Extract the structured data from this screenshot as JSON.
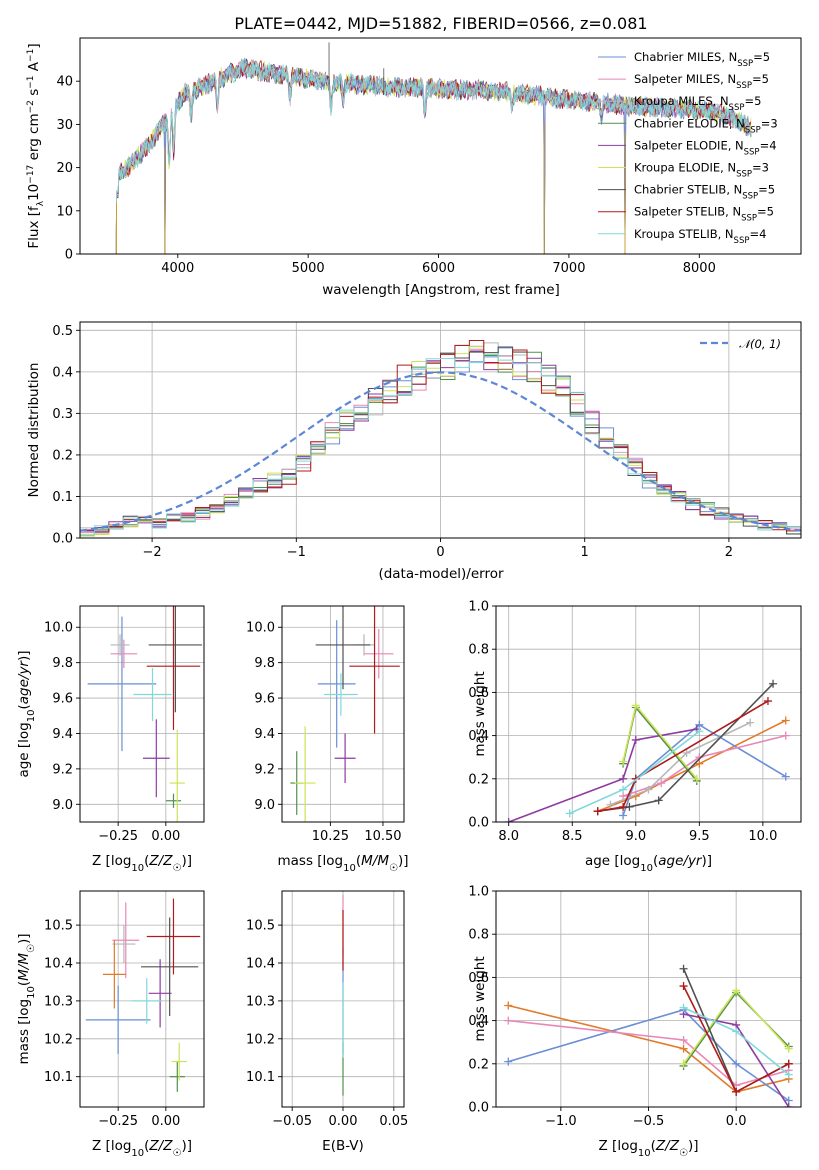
{
  "figure": {
    "title": "PLATE=0442, MJD=51882, FIBERID=0566, z=0.081"
  },
  "models": [
    {
      "name": "Chabrier MILES",
      "nssp": "5",
      "color": "#6a8fd6"
    },
    {
      "name": "Salpeter MILES",
      "nssp": "5",
      "color": "#e887b6"
    },
    {
      "name": "Kroupa MILES",
      "nssp": "5",
      "color": "#b7b7b7"
    },
    {
      "name": "Chabrier ELODIE",
      "nssp": "3",
      "color": "#52904e"
    },
    {
      "name": "Salpeter ELODIE",
      "nssp": "4",
      "color": "#8e3ba1"
    },
    {
      "name": "Kroupa ELODIE",
      "nssp": "3",
      "color": "#cde35a"
    },
    {
      "name": "Chabrier STELIB",
      "nssp": "5",
      "color": "#505050"
    },
    {
      "name": "Salpeter STELIB",
      "nssp": "5",
      "color": "#b11a1a"
    },
    {
      "name": "Kroupa STELIB",
      "nssp": "4",
      "color": "#7fd8dc"
    }
  ],
  "chart_data": [
    {
      "id": "spectrum",
      "type": "line",
      "xlabel": "wavelength [Angstrom, rest frame]",
      "ylabel": "Flux [f_λ 10^−17 erg cm^−2 s^−1 A^−1]",
      "xlim": [
        3250,
        8780
      ],
      "ylim": [
        0,
        50
      ],
      "xticks": [
        4000,
        5000,
        6000,
        7000,
        8000
      ],
      "yticks": [
        0,
        10,
        20,
        30,
        40
      ],
      "legend_position": "top-right",
      "continuum": {
        "x": [
          3530,
          3650,
          3800,
          3950,
          4050,
          4200,
          4350,
          4500,
          4700,
          4900,
          5100,
          5300,
          5500,
          5700,
          5900,
          6100,
          6300,
          6500,
          6700,
          6900,
          7100,
          7300,
          7500,
          7700,
          7900,
          8100,
          8300,
          8400
        ],
        "y": [
          18,
          21,
          26,
          33,
          37,
          39,
          41,
          43,
          42,
          41,
          40,
          39.5,
          39,
          38.5,
          38.5,
          38,
          38,
          37.5,
          37,
          36,
          35.5,
          35,
          34,
          34,
          33.5,
          33,
          31,
          29
        ]
      },
      "absorption_features": [
        {
          "x": 3934,
          "depth": 12
        },
        {
          "x": 3969,
          "depth": 10
        },
        {
          "x": 4102,
          "depth": 6
        },
        {
          "x": 4305,
          "depth": 7
        },
        {
          "x": 4861,
          "depth": 5
        },
        {
          "x": 5175,
          "depth": 6
        },
        {
          "x": 5270,
          "depth": 4
        },
        {
          "x": 5895,
          "depth": 6
        },
        {
          "x": 6563,
          "depth": 3
        },
        {
          "x": 7250,
          "depth": 3
        }
      ],
      "dropouts": [
        3530,
        3900,
        6810,
        7430
      ],
      "spikes": [
        {
          "x": 5160,
          "y": 49
        },
        {
          "x": 5580,
          "y": 43
        }
      ]
    },
    {
      "id": "residuals",
      "type": "histogram",
      "xlabel": "(data-model)/error",
      "ylabel": "Normed distribution",
      "xlim": [
        -2.5,
        2.5
      ],
      "ylim": [
        0,
        0.52
      ],
      "xticks": [
        -2,
        -1,
        0,
        1,
        2
      ],
      "yticks": [
        0,
        0.1,
        0.2,
        0.3,
        0.4,
        0.5
      ],
      "bin_edges_start": -2.5,
      "bin_width": 0.1,
      "base_distribution": [
        0.015,
        0.02,
        0.03,
        0.04,
        0.04,
        0.035,
        0.045,
        0.05,
        0.06,
        0.07,
        0.09,
        0.11,
        0.13,
        0.14,
        0.15,
        0.18,
        0.21,
        0.25,
        0.28,
        0.3,
        0.33,
        0.36,
        0.38,
        0.39,
        0.4,
        0.42,
        0.44,
        0.45,
        0.43,
        0.44,
        0.42,
        0.41,
        0.38,
        0.36,
        0.32,
        0.28,
        0.24,
        0.2,
        0.17,
        0.14,
        0.12,
        0.1,
        0.08,
        0.07,
        0.06,
        0.05,
        0.04,
        0.03,
        0.025,
        0.02
      ],
      "normal_curve": {
        "label": "𝒩(0, 1)",
        "mean": 0,
        "sigma": 1,
        "color": "#5b87d6"
      },
      "legend_position": "top-right"
    },
    {
      "id": "age-vs-Z",
      "type": "errorbar",
      "xlabel": "Z [log10(Z/Z☉)]",
      "ylabel": "age [log10(age/yr)]",
      "xlim": [
        -0.45,
        0.2
      ],
      "ylim": [
        8.9,
        10.12
      ],
      "xticks": [
        -0.25,
        0.0
      ],
      "xtick_labels": [
        "−0.25",
        "0.00"
      ],
      "yticks": [
        9.0,
        9.2,
        9.4,
        9.6,
        9.8,
        10.0
      ],
      "points": [
        {
          "model": 0,
          "x": -0.23,
          "xerr": 0.18,
          "y": 9.68,
          "yerr": 0.38
        },
        {
          "model": 1,
          "x": -0.22,
          "xerr": 0.07,
          "y": 9.85,
          "yerr": 0.08
        },
        {
          "model": 2,
          "x": -0.24,
          "xerr": 0.05,
          "y": 9.9,
          "yerr": 0.06
        },
        {
          "model": 3,
          "x": 0.04,
          "xerr": 0.04,
          "y": 9.02,
          "yerr": 0.04
        },
        {
          "model": 4,
          "x": -0.05,
          "xerr": 0.07,
          "y": 9.26,
          "yerr": 0.22
        },
        {
          "model": 5,
          "x": 0.06,
          "xerr": 0.04,
          "y": 9.12,
          "yerr": 0.3
        },
        {
          "model": 6,
          "x": 0.05,
          "xerr": 0.14,
          "y": 9.9,
          "yerr": 0.38
        },
        {
          "model": 7,
          "x": 0.04,
          "xerr": 0.14,
          "y": 9.78,
          "yerr": 0.36
        },
        {
          "model": 8,
          "x": -0.07,
          "xerr": 0.1,
          "y": 9.62,
          "yerr": 0.15
        }
      ]
    },
    {
      "id": "age-vs-mass",
      "type": "errorbar",
      "xlabel": "mass [log10(M/M☉)]",
      "ylabel": "",
      "xlim": [
        10.02,
        10.6
      ],
      "ylim": [
        8.9,
        10.12
      ],
      "xticks": [
        10.25,
        10.5
      ],
      "xtick_labels": [
        "10.25",
        "10.50"
      ],
      "yticks": [
        9.0,
        9.2,
        9.4,
        9.6,
        9.8,
        10.0
      ],
      "points": [
        {
          "model": 0,
          "x": 10.28,
          "xerr": 0.09,
          "y": 9.68,
          "yerr": 0.36
        },
        {
          "model": 1,
          "x": 10.48,
          "xerr": 0.07,
          "y": 9.85,
          "yerr": 0.14
        },
        {
          "model": 2,
          "x": 10.41,
          "xerr": 0.05,
          "y": 9.9,
          "yerr": 0.06
        },
        {
          "model": 3,
          "x": 10.09,
          "xerr": 0.03,
          "y": 9.12,
          "yerr": 0.18
        },
        {
          "model": 4,
          "x": 10.32,
          "xerr": 0.05,
          "y": 9.26,
          "yerr": 0.14
        },
        {
          "model": 5,
          "x": 10.13,
          "xerr": 0.05,
          "y": 9.12,
          "yerr": 0.32
        },
        {
          "model": 6,
          "x": 10.31,
          "xerr": 0.13,
          "y": 9.9,
          "yerr": 0.25
        },
        {
          "model": 7,
          "x": 10.46,
          "xerr": 0.12,
          "y": 9.78,
          "yerr": 0.38
        },
        {
          "model": 8,
          "x": 10.3,
          "xerr": 0.08,
          "y": 9.62,
          "yerr": 0.12
        }
      ]
    },
    {
      "id": "mass-weight-vs-age",
      "type": "line",
      "xlabel": "age [log10(age/yr)]",
      "ylabel": "mass weight",
      "xlim": [
        7.9,
        10.3
      ],
      "ylim": [
        0,
        1.0
      ],
      "xticks": [
        8.0,
        8.5,
        9.0,
        9.5,
        10.0
      ],
      "yticks": [
        0,
        0.2,
        0.4,
        0.6,
        0.8,
        1.0
      ],
      "series": [
        {
          "model": 0,
          "x": [
            8.9,
            9.0,
            9.5,
            10.18
          ],
          "y": [
            0.03,
            0.2,
            0.45,
            0.21
          ]
        },
        {
          "model": 1,
          "x": [
            8.9,
            9.2,
            9.5,
            10.18
          ],
          "y": [
            0.12,
            0.18,
            0.3,
            0.4
          ]
        },
        {
          "model": 2,
          "x": [
            8.8,
            9.1,
            9.4,
            9.9
          ],
          "y": [
            0.08,
            0.15,
            0.32,
            0.46
          ]
        },
        {
          "model": 3,
          "x": [
            8.9,
            9.0,
            9.48
          ],
          "y": [
            0.27,
            0.53,
            0.19
          ]
        },
        {
          "model": 4,
          "x": [
            8.0,
            8.9,
            9.0,
            9.48
          ],
          "y": [
            0.0,
            0.2,
            0.38,
            0.43
          ]
        },
        {
          "model": 5,
          "x": [
            8.9,
            9.0,
            9.48
          ],
          "y": [
            0.28,
            0.54,
            0.2
          ]
        },
        {
          "model": 6,
          "x": [
            8.7,
            8.95,
            9.18,
            10.08
          ],
          "y": [
            0.05,
            0.07,
            0.1,
            0.64
          ]
        },
        {
          "model": 7,
          "x": [
            8.7,
            8.9,
            9.0,
            10.04
          ],
          "y": [
            0.05,
            0.07,
            0.2,
            0.56
          ]
        },
        {
          "model": 8,
          "x": [
            8.48,
            8.9,
            9.5
          ],
          "y": [
            0.04,
            0.15,
            0.42
          ]
        }
      ],
      "extra_orange": {
        "x": [
          8.7,
          9.0,
          9.5,
          10.18
        ],
        "y": [
          0.05,
          0.12,
          0.27,
          0.47
        ]
      }
    },
    {
      "id": "mass-vs-Z",
      "type": "errorbar",
      "xlabel": "Z [log10(Z/Z☉)]",
      "ylabel": "mass [log10(M/M☉)]",
      "xlim": [
        -0.45,
        0.2
      ],
      "ylim": [
        10.02,
        10.59
      ],
      "xticks": [
        -0.25,
        0.0
      ],
      "xtick_labels": [
        "−0.25",
        "0.00"
      ],
      "yticks": [
        10.1,
        10.2,
        10.3,
        10.4,
        10.5
      ],
      "points": [
        {
          "model": 0,
          "x": -0.25,
          "xerr": 0.17,
          "y": 10.25,
          "yerr": 0.09
        },
        {
          "model": 1,
          "x": -0.21,
          "xerr": 0.07,
          "y": 10.46,
          "yerr": 0.1
        },
        {
          "model": 2,
          "x": -0.22,
          "xerr": 0.06,
          "y": 10.45,
          "yerr": 0.05
        },
        {
          "model": 3,
          "x": 0.06,
          "xerr": 0.04,
          "y": 10.1,
          "yerr": 0.04
        },
        {
          "model": 4,
          "x": -0.03,
          "xerr": 0.06,
          "y": 10.32,
          "yerr": 0.09
        },
        {
          "model": 5,
          "x": 0.07,
          "xerr": 0.04,
          "y": 10.14,
          "yerr": 0.05
        },
        {
          "model": 6,
          "x": 0.02,
          "xerr": 0.15,
          "y": 10.39,
          "yerr": 0.13
        },
        {
          "model": 7,
          "x": 0.04,
          "xerr": 0.14,
          "y": 10.47,
          "yerr": 0.1
        },
        {
          "model": 8,
          "x": -0.1,
          "xerr": 0.08,
          "y": 10.3,
          "yerr": 0.06
        }
      ],
      "extra_orange": {
        "x": -0.27,
        "xerr": 0.06,
        "y": 10.37,
        "yerr": 0.09
      }
    },
    {
      "id": "mass-vs-ebv",
      "type": "errorbar",
      "xlabel": "E(B-V)",
      "ylabel": "",
      "xlim": [
        -0.06,
        0.06
      ],
      "ylim": [
        10.02,
        10.59
      ],
      "xticks": [
        -0.05,
        0.0,
        0.05
      ],
      "xtick_labels": [
        "−0.05",
        "0.00",
        "0.05"
      ],
      "yticks": [
        10.1,
        10.2,
        10.3,
        10.4,
        10.5
      ],
      "points": [
        {
          "model": 0,
          "x": 0,
          "xerr": 0,
          "y": 10.3,
          "yerr": 0.14
        },
        {
          "model": 1,
          "x": 0,
          "xerr": 0,
          "y": 10.5,
          "yerr": 0.08
        },
        {
          "model": 3,
          "x": 0,
          "xerr": 0,
          "y": 10.12,
          "yerr": 0.07
        },
        {
          "model": 7,
          "x": 0,
          "xerr": 0,
          "y": 10.46,
          "yerr": 0.08
        },
        {
          "model": 8,
          "x": 0,
          "xerr": 0,
          "y": 10.25,
          "yerr": 0.1
        }
      ]
    },
    {
      "id": "mass-weight-vs-Z",
      "type": "line",
      "xlabel": "Z [log10(Z/Z☉)]",
      "ylabel": "mass weight",
      "xlim": [
        -1.37,
        0.37
      ],
      "ylim": [
        0,
        1.0
      ],
      "xticks": [
        -1.0,
        -0.5,
        0.0
      ],
      "xtick_labels": [
        "−1.0",
        "−0.5",
        "0.0"
      ],
      "yticks": [
        0,
        0.2,
        0.4,
        0.6,
        0.8,
        1.0
      ],
      "series": [
        {
          "model": 0,
          "x": [
            -1.3,
            -0.3,
            0.0,
            0.3
          ],
          "y": [
            0.21,
            0.45,
            0.2,
            0.03
          ]
        },
        {
          "model": 1,
          "x": [
            -1.3,
            -0.3,
            0.0,
            0.3
          ],
          "y": [
            0.4,
            0.31,
            0.1,
            0.17
          ]
        },
        {
          "model": 3,
          "x": [
            -0.3,
            0.0,
            0.3
          ],
          "y": [
            0.19,
            0.53,
            0.28
          ]
        },
        {
          "model": 4,
          "x": [
            -0.3,
            0.0,
            0.3
          ],
          "y": [
            0.43,
            0.38,
            0.0
          ]
        },
        {
          "model": 5,
          "x": [
            -0.3,
            0.0,
            0.3
          ],
          "y": [
            0.2,
            0.54,
            0.27
          ]
        },
        {
          "model": 6,
          "x": [
            -0.3,
            0.0,
            0.3
          ],
          "y": [
            0.64,
            0.07,
            0.2
          ]
        },
        {
          "model": 7,
          "x": [
            -0.3,
            0.0,
            0.3
          ],
          "y": [
            0.56,
            0.07,
            0.2
          ]
        },
        {
          "model": 8,
          "x": [
            -0.3,
            0.0,
            0.3
          ],
          "y": [
            0.46,
            0.35,
            0.15
          ]
        }
      ],
      "extra_orange": {
        "x": [
          -1.3,
          -0.3,
          0.0,
          0.3
        ],
        "y": [
          0.47,
          0.27,
          0.07,
          0.13
        ]
      }
    }
  ]
}
